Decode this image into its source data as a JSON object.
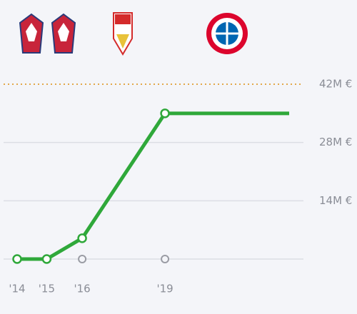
{
  "chart_data": {
    "type": "line",
    "x": [
      2014,
      2015,
      2016.2,
      2019,
      2023.2
    ],
    "series": [
      {
        "color": "#2fa83a",
        "values": [
          0,
          0,
          5,
          35,
          35
        ]
      }
    ],
    "xlim": [
      2014,
      2023.2
    ],
    "xticks": [
      {
        "value": 2014,
        "label": "'14"
      },
      {
        "value": 2015,
        "label": "'15"
      },
      {
        "value": 2016.2,
        "label": "'16"
      },
      {
        "value": 2019,
        "label": "'19"
      }
    ],
    "ylim": [
      0,
      42
    ],
    "yticks": [
      {
        "value": 14,
        "label": "14M €"
      },
      {
        "value": 28,
        "label": "28M €"
      },
      {
        "value": 42,
        "label": "42M €"
      }
    ],
    "grid": true,
    "grid_color": "#dcdee4",
    "max_line_color": "#e2a84a"
  }
}
